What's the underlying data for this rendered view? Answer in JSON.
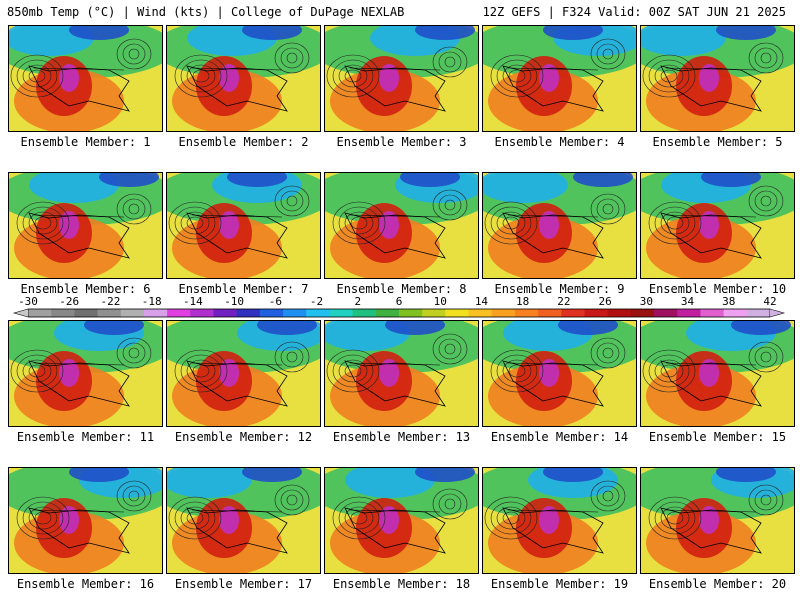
{
  "header": {
    "left": "850mb Temp (°C) | Wind (kts) | College of DuPage NEXLAB",
    "right": "12Z GEFS | F324 Valid: 00Z SAT JUN 21 2025"
  },
  "members": [
    "Ensemble Member: 1",
    "Ensemble Member: 2",
    "Ensemble Member: 3",
    "Ensemble Member: 4",
    "Ensemble Member: 5",
    "Ensemble Member: 6",
    "Ensemble Member: 7",
    "Ensemble Member: 8",
    "Ensemble Member: 9",
    "Ensemble Member: 10",
    "Ensemble Member: 11",
    "Ensemble Member: 12",
    "Ensemble Member: 13",
    "Ensemble Member: 14",
    "Ensemble Member: 15",
    "Ensemble Member: 16",
    "Ensemble Member: 17",
    "Ensemble Member: 18",
    "Ensemble Member: 19",
    "Ensemble Member: 20"
  ],
  "colorbar": {
    "ticks": [
      "-30",
      "-26",
      "-22",
      "-18",
      "-14",
      "-10",
      "-6",
      "-2",
      "2",
      "6",
      "10",
      "14",
      "18",
      "22",
      "26",
      "30",
      "34",
      "38",
      "42"
    ],
    "colors": [
      "#a0a0a0",
      "#888888",
      "#707070",
      "#909090",
      "#b0b0b0",
      "#d8a0e8",
      "#e040e0",
      "#b030d0",
      "#7020c0",
      "#3030c0",
      "#2060e0",
      "#2090f0",
      "#20c0f0",
      "#20d0c0",
      "#20c080",
      "#40b040",
      "#80c020",
      "#c0d020",
      "#f0e020",
      "#f8c020",
      "#f8a020",
      "#f88020",
      "#f06020",
      "#e03020",
      "#c81818",
      "#b01010",
      "#981010",
      "#a01060",
      "#c020a0",
      "#e060d0",
      "#f0a0f0",
      "#d0b0e0"
    ]
  },
  "map_palette": {
    "cold": "#2050c8",
    "cool": "#20b0e8",
    "mild": "#40c060",
    "warm": "#e8e040",
    "hot": "#f08020",
    "very_hot": "#d02010",
    "extreme": "#c030c0"
  }
}
